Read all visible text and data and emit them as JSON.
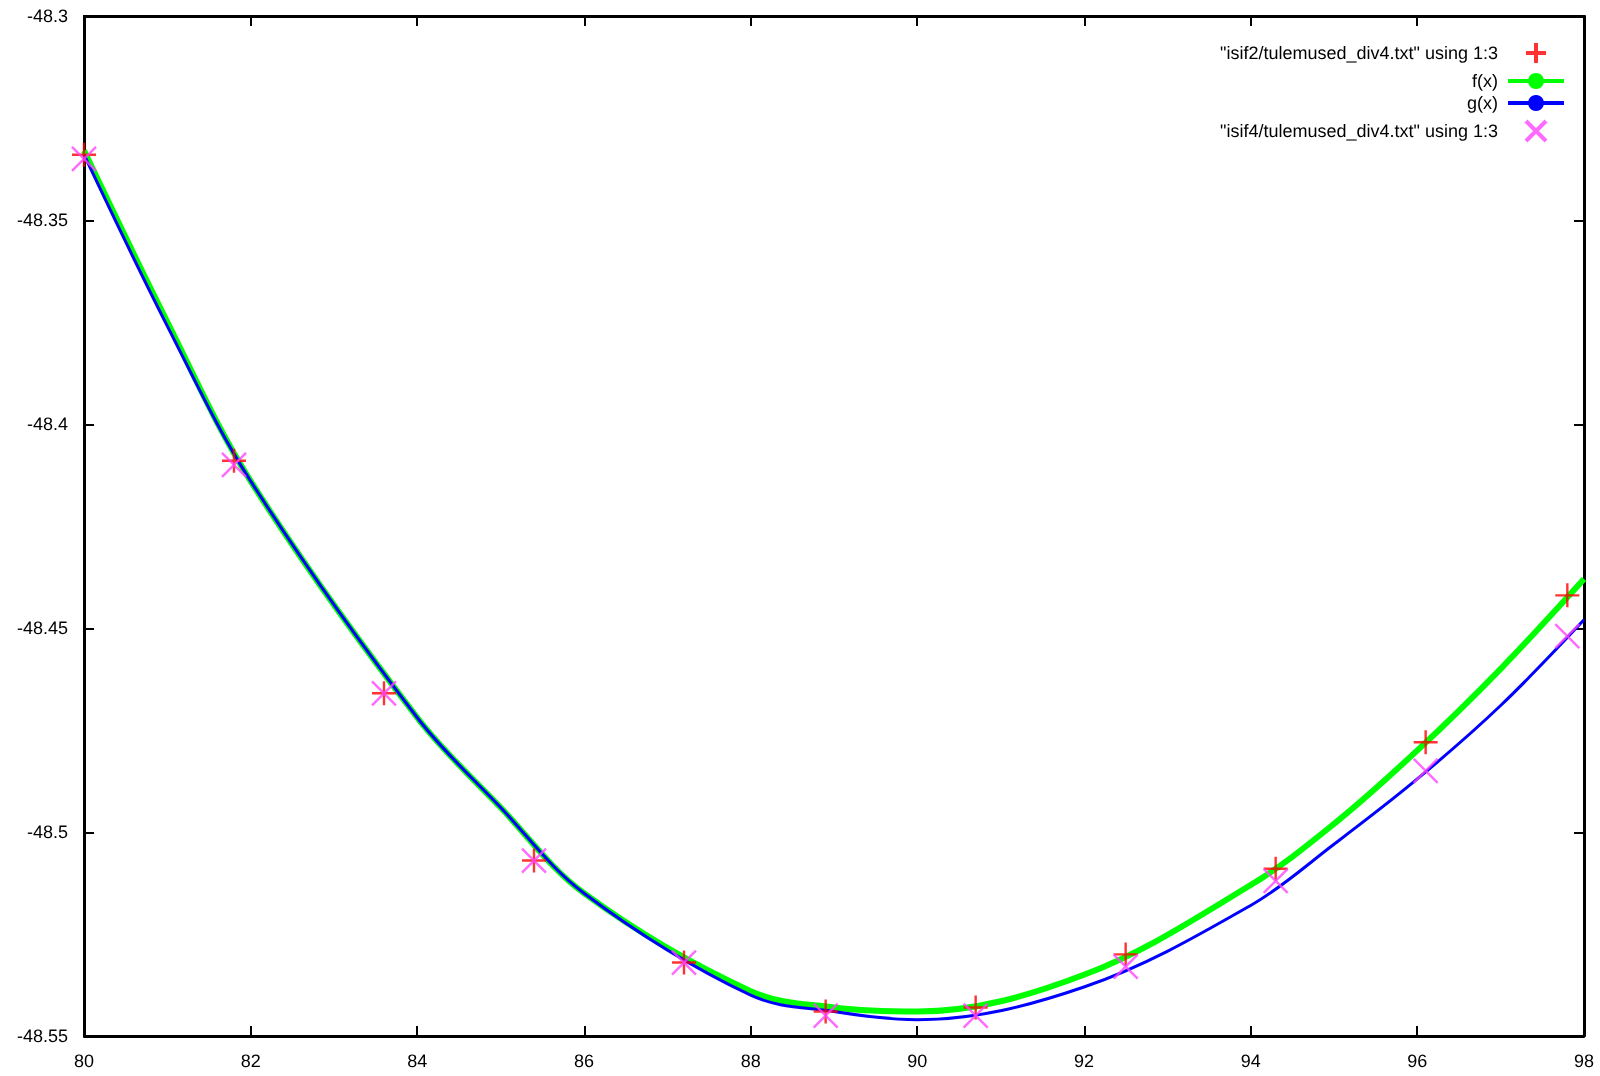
{
  "chart_data": {
    "type": "scatter",
    "xlim": [
      80,
      98
    ],
    "xticks": [
      80,
      82,
      84,
      86,
      88,
      90,
      92,
      94,
      96,
      98
    ],
    "ylim": [
      -48.55,
      -48.3
    ],
    "yticks": [
      -48.55,
      -48.5,
      -48.45,
      -48.4,
      -48.35,
      -48.3
    ],
    "grid": false,
    "legend": "top right",
    "series": [
      {
        "name": "\"isif2/tulemused_div4.txt\" using 1:3",
        "marker": "cross",
        "color": "#ff0000",
        "x": [
          80.0,
          81.8,
          83.6,
          85.4,
          87.2,
          88.9,
          90.7,
          92.5,
          94.3,
          96.1,
          97.8
        ],
        "values": [
          -48.334,
          -48.409,
          -48.466,
          -48.507,
          -48.532,
          -48.544,
          -48.543,
          -48.53,
          -48.509,
          -48.478,
          -48.442
        ]
      },
      {
        "name": "f(x)",
        "type": "line",
        "marker": "none",
        "color": "#00ff00",
        "x": [
          80,
          81,
          82,
          84,
          85,
          86,
          88,
          89,
          90,
          92,
          94,
          95,
          96,
          97,
          98
        ],
        "values": [
          -48.333,
          -48.375,
          -48.414,
          -48.472,
          -48.494,
          -48.515,
          -48.539,
          -48.543,
          -48.544,
          -48.535,
          -48.513,
          -48.498,
          -48.48,
          -48.46,
          -48.438
        ]
      },
      {
        "name": "g(x)",
        "type": "line",
        "marker": "none",
        "color": "#0000ff",
        "x": [
          80,
          81,
          82,
          84,
          85,
          86,
          88,
          89,
          90,
          92,
          94,
          95,
          96,
          97,
          98
        ],
        "values": [
          -48.334,
          -48.376,
          -48.414,
          -48.472,
          -48.494,
          -48.515,
          -48.54,
          -48.544,
          -48.546,
          -48.538,
          -48.518,
          -48.503,
          -48.487,
          -48.469,
          -48.448
        ]
      },
      {
        "name": "\"isif4/tulemused_div4.txt\" using 1:3",
        "marker": "x",
        "color": "#ff44ff",
        "x": [
          80.0,
          81.8,
          83.6,
          85.4,
          87.2,
          88.9,
          90.7,
          92.5,
          94.3,
          96.1,
          97.8
        ],
        "values": [
          -48.335,
          -48.41,
          -48.466,
          -48.507,
          -48.532,
          -48.545,
          -48.545,
          -48.533,
          -48.512,
          -48.485,
          -48.452
        ]
      }
    ]
  }
}
